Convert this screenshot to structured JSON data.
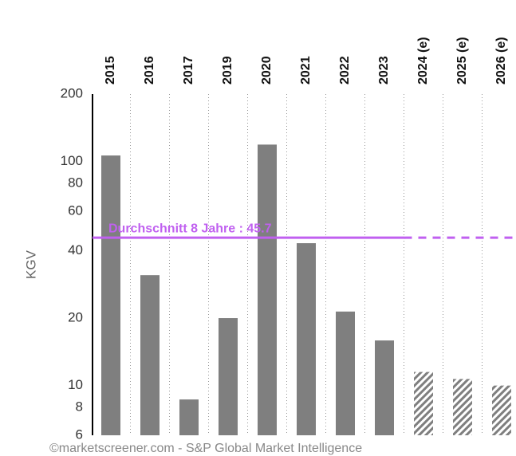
{
  "chart_data": {
    "type": "bar",
    "y_label": "KGV",
    "categories": [
      "2015",
      "2016",
      "2017",
      "2019",
      "2020",
      "2021",
      "2022",
      "2023",
      "2024 (e)",
      "2025 (e)",
      "2026 (e)"
    ],
    "series": [
      {
        "color": "#7f7f7f",
        "values": [
          106.4,
          31.1,
          8.67,
          20,
          119,
          43.2,
          21.4,
          15.9,
          null,
          null,
          null
        ]
      },
      {
        "color": "#7f7f7f",
        "pattern": "hatch",
        "values": [
          null,
          null,
          null,
          null,
          null,
          null,
          null,
          null,
          11.5,
          10.7,
          10
        ]
      }
    ],
    "average": {
      "value": 45.7,
      "label": "Durchschnitt 8 Jahre : 45.7",
      "color": "#c060f0"
    },
    "log_scale": true,
    "ylim": [
      6,
      200
    ],
    "yticks": [
      6,
      8,
      10,
      20,
      40,
      60,
      80,
      100,
      200
    ],
    "grid": true,
    "footer": "©marketscreener.com - S&P Global Market Intelligence"
  }
}
